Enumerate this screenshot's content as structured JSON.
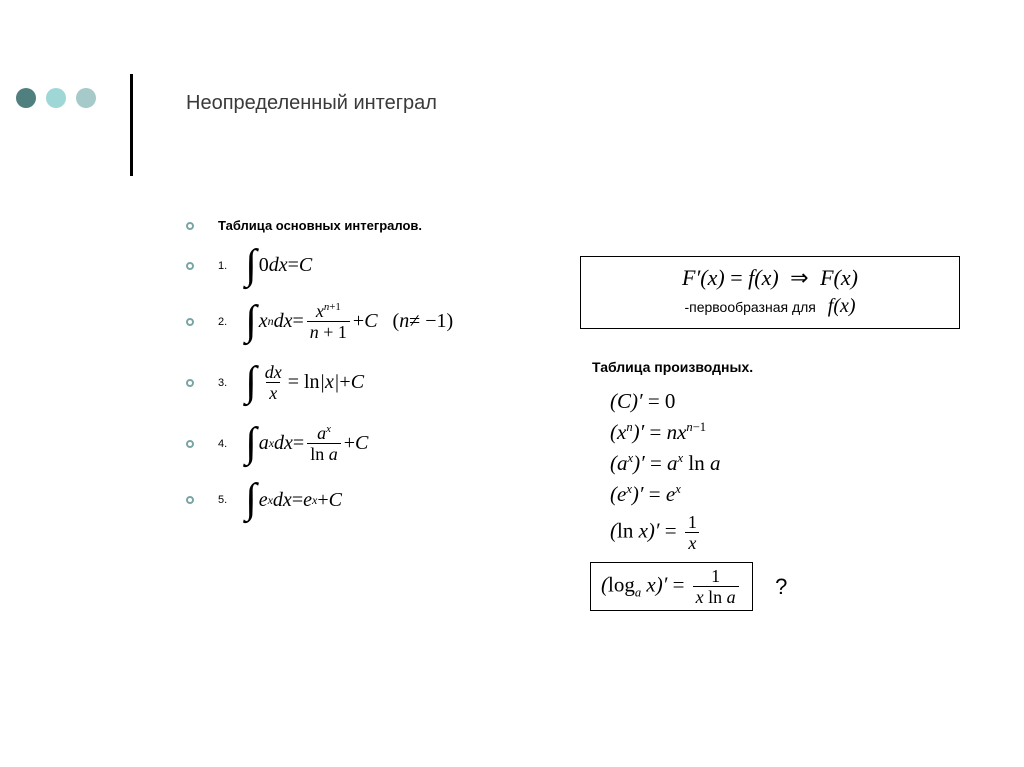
{
  "dots": {
    "colors": [
      "#4f7f7f",
      "#9fd6d6",
      "#a6c9c9"
    ]
  },
  "title": "Неопределенный интеграл",
  "left": {
    "subheading": "Таблица основных интегралов.",
    "items": [
      {
        "num": "1.",
        "html": "<span class='intsign'>∫</span><span class='upright'>0</span>dx<span class='upright'> = </span>C"
      },
      {
        "num": "2.",
        "html": "<span class='intsign'>∫</span>x<sup>n</sup>dx<span class='upright'> = </span><span class='frac'><span class='top'>x<sup>n<span class=\"upright\">+1</span></sup></span><span class='bot'>n<span class=\"upright\"> + 1</span></span></span><span class='upright'> + </span>C&nbsp;&nbsp;&nbsp;<span class='upright'>(</span>n<span class='upright'> &ne; &minus;1)</span>"
      },
      {
        "num": "3.",
        "html": "<span class='intsign'>∫</span><span class='frac'><span class='top'>dx</span><span class='bot'>x</span></span><span class='upright'> = ln</span>|x|<span class='upright'> + </span>C"
      },
      {
        "num": "4.",
        "html": "<span class='intsign'>∫</span>a<sup>x</sup>dx<span class='upright'> = </span><span class='frac'><span class='top'>a<sup>x</sup></span><span class='bot'><span class=\"upright\">ln</span> a</span></span><span class='upright'> + </span>C"
      },
      {
        "num": "5.",
        "html": "<span class='intsign'>∫</span>e<sup>x</sup>dx<span class='upright'> = </span>e<sup>x</sup><span class='upright'> + </span>C"
      }
    ]
  },
  "right": {
    "callout_top_html": "F&prime;(x)<span class='upright'> = </span>f(x)&nbsp;<span class='arrow'>&rArr;</span>&nbsp;F(x)",
    "callout_label": "-первообразная для",
    "callout_fx_html": "f(x)",
    "deriv_heading": "Таблица производных.",
    "derivs": [
      "(C)&prime;<span class='upright'> = 0</span>",
      "(x<sup>n</sup>)&prime;<span class='upright'> = </span>nx<sup>n<span class='upright'>&minus;1</span></sup>",
      "(a<sup>x</sup>)&prime;<span class='upright'> = </span>a<sup>x</sup> <span class='upright'>ln</span> a",
      "(e<sup>x</sup>)&prime;<span class='upright'> = </span>e<sup>x</sup>",
      "(<span class='upright'>ln</span> x)&prime;<span class='upright'> = </span><span class='frac'><span class='top'><span class=\"upright\">1</span></span><span class='bot'>x</span></span>"
    ],
    "log_html": "(<span class='upright'>log</span><sub>a</sub> x)&prime;<span class='upright'> = </span><span class='frac'><span class='top'><span class=\"upright\">1</span></span><span class='bot'>x <span class=\"upright\">ln</span> a</span></span>",
    "qmark": "?"
  }
}
